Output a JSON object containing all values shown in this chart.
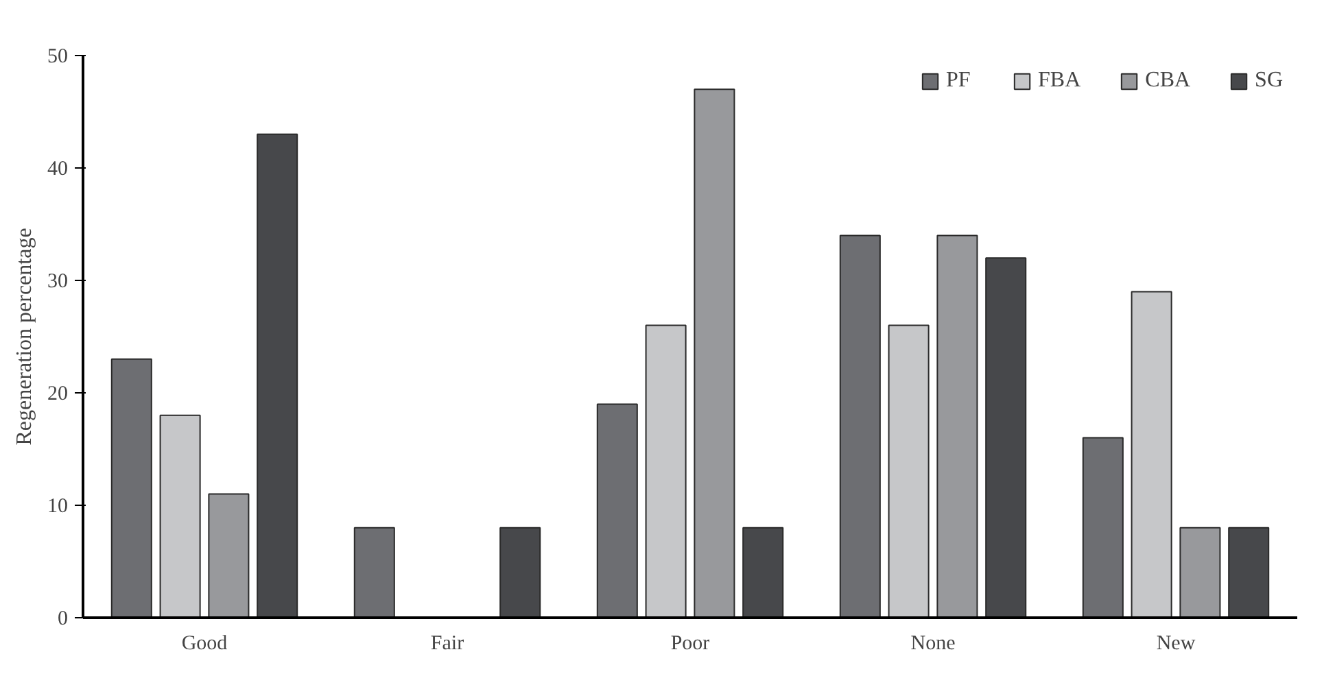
{
  "chart_data": {
    "type": "bar",
    "ylabel": "Regeneration percentage",
    "categories": [
      "Good",
      "Fair",
      "Poor",
      "None",
      "New"
    ],
    "series": [
      {
        "name": "PF",
        "color": "#6d6e72",
        "values": [
          23,
          8,
          19,
          34,
          16
        ]
      },
      {
        "name": "FBA",
        "color": "#c6c7c9",
        "values": [
          18,
          0,
          26,
          26,
          29
        ]
      },
      {
        "name": "CBA",
        "color": "#98999c",
        "values": [
          11,
          0,
          47,
          34,
          8
        ]
      },
      {
        "name": "SG",
        "color": "#47484b",
        "values": [
          43,
          8,
          8,
          32,
          8
        ]
      }
    ],
    "ylim": [
      0,
      50
    ],
    "yticks": [
      0,
      10,
      20,
      30,
      40,
      50
    ],
    "grid": false,
    "legend": "top right"
  }
}
